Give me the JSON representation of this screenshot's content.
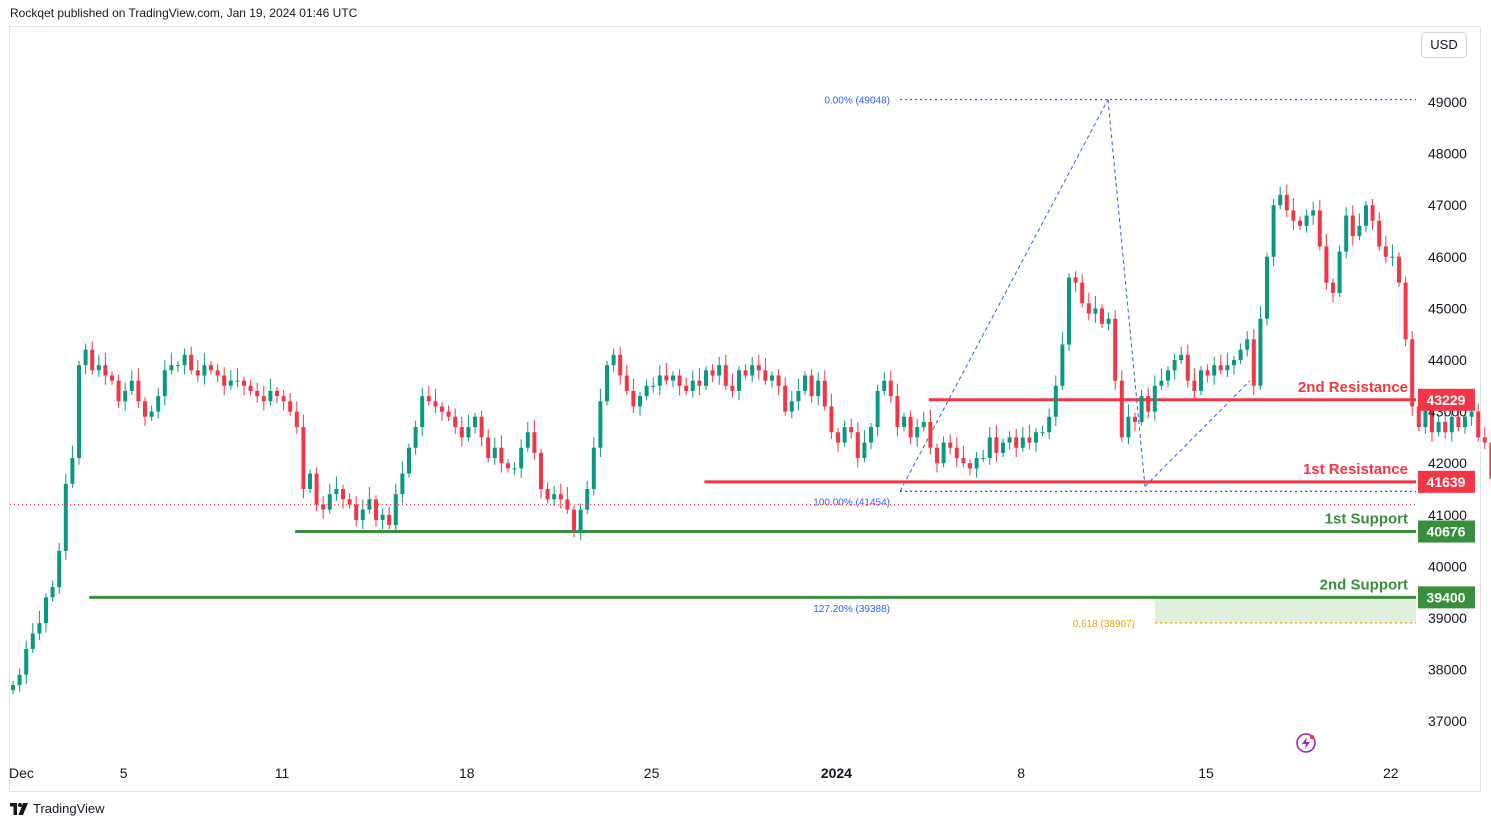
{
  "header": {
    "published": "Rockqet published on TradingView.com, Jan 19, 2024 01:46 UTC"
  },
  "currency_button": "USD",
  "footer": {
    "brand": "TradingView"
  },
  "colors": {
    "up": "#089981",
    "down": "#f23645",
    "resistance": "#f23645",
    "support": "#388e3c",
    "fib": "#2962ff",
    "fib_gold": "#e6a800",
    "zone": "#dff0dc",
    "text": "#131722"
  },
  "chart_data": {
    "type": "candlestick",
    "ylim": [
      36500,
      50200
    ],
    "y_ticks": [
      37000,
      38000,
      39000,
      40000,
      41000,
      42000,
      43000,
      44000,
      45000,
      46000,
      47000,
      48000,
      49000
    ],
    "x_labels": [
      {
        "day": 0,
        "label": "Dec"
      },
      {
        "day": 4,
        "label": "5"
      },
      {
        "day": 10,
        "label": "11"
      },
      {
        "day": 17,
        "label": "18"
      },
      {
        "day": 24,
        "label": "25"
      },
      {
        "day": 31,
        "label": "2024",
        "bold": true
      },
      {
        "day": 38,
        "label": "8"
      },
      {
        "day": 45,
        "label": "15"
      },
      {
        "day": 52,
        "label": "22"
      }
    ],
    "closes": [
      37700,
      37900,
      38400,
      38700,
      38900,
      39400,
      39600,
      40300,
      41600,
      42100,
      43900,
      44200,
      43800,
      43900,
      43700,
      43600,
      43200,
      43400,
      43600,
      43200,
      42900,
      43000,
      43300,
      43800,
      43900,
      43900,
      44100,
      43800,
      43700,
      43900,
      43800,
      43700,
      43500,
      43600,
      43600,
      43500,
      43400,
      43300,
      43200,
      43400,
      43300,
      43200,
      43000,
      42700,
      41500,
      41800,
      41200,
      41100,
      41400,
      41500,
      41300,
      41200,
      40900,
      41100,
      41300,
      40900,
      41000,
      40800,
      41400,
      41800,
      42300,
      42700,
      43300,
      43200,
      43100,
      43000,
      42900,
      42700,
      42500,
      42700,
      42900,
      42500,
      42100,
      42300,
      42000,
      41900,
      41900,
      42300,
      42600,
      42200,
      41500,
      41300,
      41400,
      41300,
      41100,
      40700,
      41100,
      41500,
      42300,
      43200,
      43900,
      44100,
      43700,
      43400,
      43100,
      43300,
      43500,
      43500,
      43700,
      43600,
      43700,
      43500,
      43400,
      43600,
      43500,
      43800,
      43700,
      43900,
      43500,
      43400,
      43800,
      43700,
      43900,
      43800,
      43600,
      43700,
      43500,
      43000,
      43200,
      43400,
      43700,
      43300,
      43600,
      43100,
      42600,
      42400,
      42700,
      42600,
      42100,
      42400,
      42700,
      43400,
      43600,
      43300,
      42700,
      42900,
      42500,
      42700,
      42800,
      42300,
      42000,
      42400,
      42300,
      42100,
      42000,
      41900,
      42100,
      42100,
      42500,
      42200,
      42400,
      42500,
      42300,
      42500,
      42400,
      42600,
      42600,
      42900,
      43500,
      44300,
      45600,
      45500,
      45100,
      44900,
      45000,
      44700,
      44800,
      43600,
      42500,
      42900,
      42800,
      43300,
      43000,
      43500,
      43600,
      43800,
      44000,
      44100,
      43600,
      43400,
      43800,
      43700,
      43900,
      43800,
      43900,
      44000,
      44200,
      44400,
      43500,
      44800,
      46000,
      47000,
      47200,
      46900,
      46700,
      46600,
      46800,
      46900,
      46200,
      45500,
      45300,
      46100,
      46800,
      46400,
      46600,
      47000,
      46700,
      46200,
      46000,
      46000,
      45500,
      44400,
      43100,
      42700,
      43100,
      42600,
      42800,
      42600,
      42900,
      42700,
      42900,
      43000,
      42500,
      42400,
      41700,
      42500,
      42700,
      43000,
      43100,
      42800,
      42900,
      43200,
      42900,
      42700,
      43200,
      43100,
      42900,
      42600,
      42800,
      42700,
      42700,
      42600,
      40800,
      41100,
      41200
    ],
    "levels": [
      {
        "name": "2nd Resistance",
        "value": 43229,
        "tag": "43229",
        "color": "#f23645",
        "from_day": 34.5
      },
      {
        "name": "1st Resistance",
        "value": 41639,
        "tag": "41639",
        "color": "#f23645",
        "from_day": 26.0
      },
      {
        "name": "1st Support",
        "value": 40676,
        "tag": "40676",
        "color": "#388e3c",
        "from_day": 10.5
      },
      {
        "name": "2nd Support",
        "value": 39400,
        "tag": "39400",
        "color": "#388e3c",
        "from_day": 2.7
      }
    ],
    "fib": [
      {
        "label": "0.00% (49048)",
        "value": 49048,
        "color": "#2962ff"
      },
      {
        "label": "100.00% (41454)",
        "value": 41454,
        "color": "#2962ff"
      },
      {
        "label": "127.20% (39388)",
        "value": 39388,
        "color": "#2962ff"
      },
      {
        "label": "0.618 (38907)",
        "value": 38907,
        "color": "#e6a800"
      }
    ]
  }
}
